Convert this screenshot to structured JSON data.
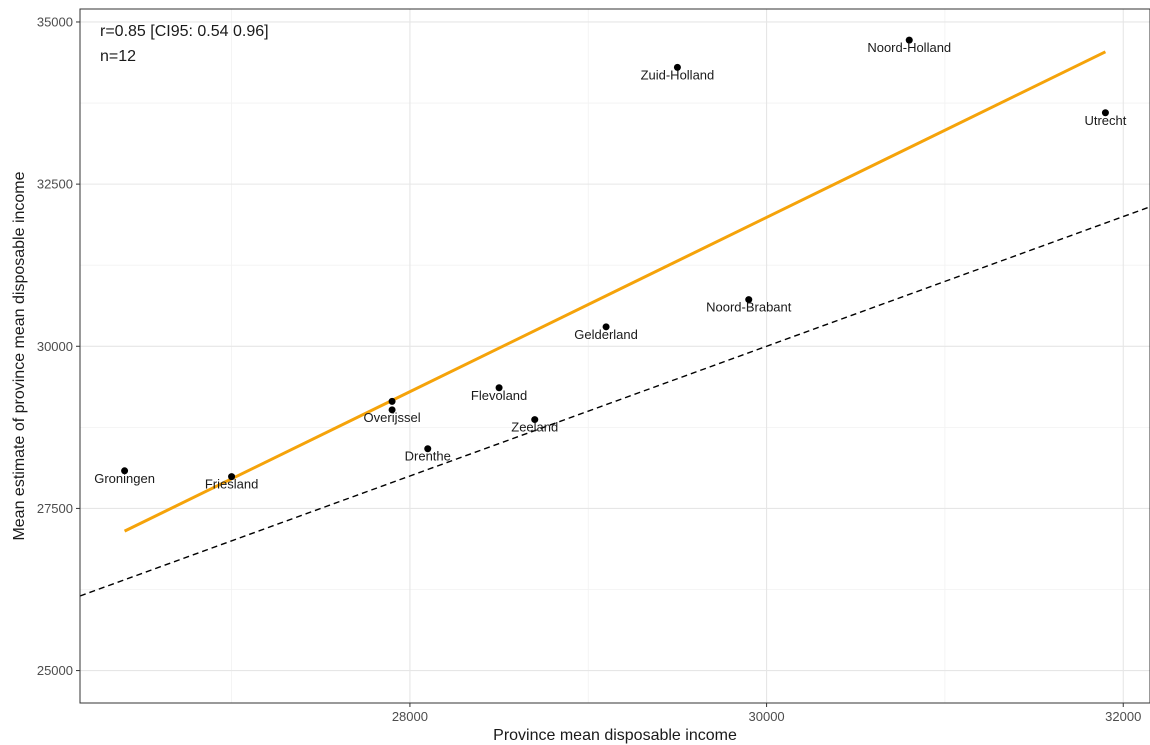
{
  "chart_data": {
    "type": "scatter",
    "title": "",
    "xlabel": "Province mean disposable income",
    "ylabel": "Mean estimate of province mean disposable income",
    "xlim": [
      26150,
      32150
    ],
    "ylim": [
      24500,
      35200
    ],
    "xticks": [
      28000,
      30000,
      32000
    ],
    "yticks": [
      25000,
      27500,
      30000,
      32500,
      35000
    ],
    "grid": true,
    "annotations": [
      "r=0.85 [CI95: 0.54 0.96]",
      "n=12"
    ],
    "points": [
      {
        "label": "Groningen",
        "x": 26400,
        "y": 28080
      },
      {
        "label": "Friesland",
        "x": 27000,
        "y": 27990
      },
      {
        "label": "Drenthe",
        "x": 28100,
        "y": 28420
      },
      {
        "label": "Overijssel",
        "x": 27900,
        "y": 29020
      },
      {
        "label": "",
        "x": 27900,
        "y": 29150
      },
      {
        "label": "Flevoland",
        "x": 28500,
        "y": 29360
      },
      {
        "label": "Zeeland",
        "x": 28700,
        "y": 28870
      },
      {
        "label": "Gelderland",
        "x": 29100,
        "y": 30300
      },
      {
        "label": "Noord-Brabant",
        "x": 29900,
        "y": 30720
      },
      {
        "label": "Zuid-Holland",
        "x": 29500,
        "y": 34300
      },
      {
        "label": "Noord-Holland",
        "x": 30800,
        "y": 34720
      },
      {
        "label": "Utrecht",
        "x": 31900,
        "y": 33600
      }
    ],
    "fit_line": {
      "color": "#f5a30a",
      "x": [
        26400,
        31900
      ],
      "y": [
        27150,
        34540
      ]
    },
    "identity_line": {
      "color": "#000000",
      "style": "dashed",
      "x": [
        26150,
        32150
      ],
      "y": [
        26150,
        32150
      ]
    },
    "point_color": "#000000"
  }
}
